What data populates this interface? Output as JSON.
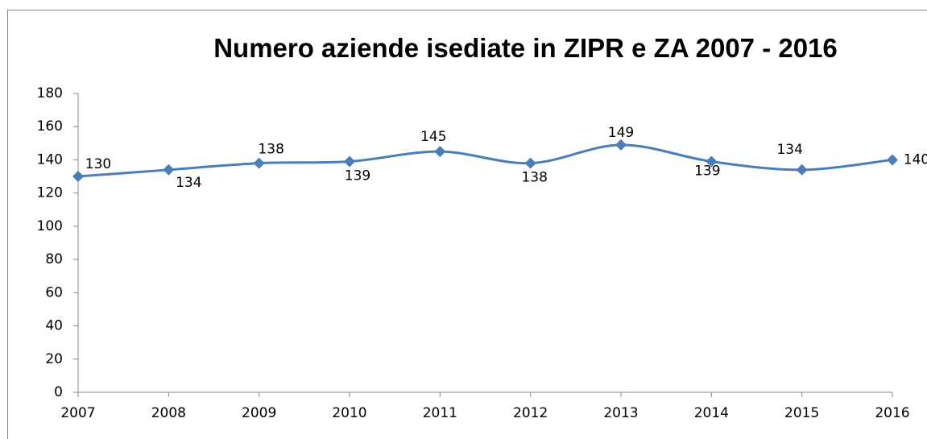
{
  "chart_data": {
    "type": "line",
    "title": "Numero aziende isediate in ZIPR e ZA 2007 - 2016",
    "categories": [
      "2007",
      "2008",
      "2009",
      "2010",
      "2011",
      "2012",
      "2013",
      "2014",
      "2015",
      "2016"
    ],
    "series": [
      {
        "color": "#4a7ebb",
        "values": [
          130,
          134,
          138,
          139,
          145,
          138,
          149,
          139,
          134,
          140
        ]
      }
    ],
    "ylim": [
      0,
      180
    ],
    "yticks": [
      0,
      20,
      40,
      60,
      80,
      100,
      120,
      140,
      160,
      180
    ],
    "grid": false
  }
}
